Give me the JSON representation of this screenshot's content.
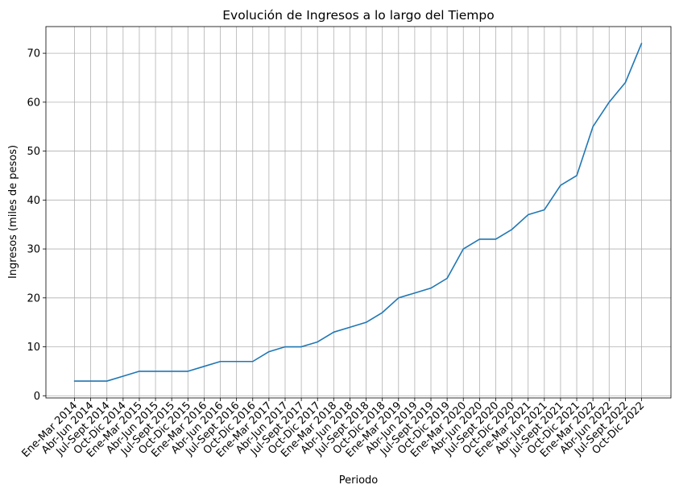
{
  "chart_data": {
    "type": "line",
    "title": "Evolución de Ingresos a lo largo del Tiempo",
    "xlabel": "Periodo",
    "ylabel": "Ingresos (miles de pesos)",
    "categories": [
      "Ene-Mar 2014",
      "Abr-Jun 2014",
      "Jul-Sept 2014",
      "Oct-Dic 2014",
      "Ene-Mar 2015",
      "Abr-Jun 2015",
      "Jul-Sept 2015",
      "Oct-Dic 2015",
      "Ene-Mar 2016",
      "Abr-Jun 2016",
      "Jul-Sept 2016",
      "Oct-Dic 2016",
      "Ene-Mar 2017",
      "Abr-Jun 2017",
      "Jul-Sept 2017",
      "Oct-Dic 2017",
      "Ene-Mar 2018",
      "Abr-Jun 2018",
      "Jul-Sept 2018",
      "Oct-Dic 2018",
      "Ene-Mar 2019",
      "Abr-Jun 2019",
      "Jul-Sept 2019",
      "Oct-Dic 2019",
      "Ene-Mar 2020",
      "Abr-Jun 2020",
      "Jul-Sept 2020",
      "Oct-Dic 2020",
      "Ene-Mar 2021",
      "Abr-Jun 2021",
      "Jul-Sept 2021",
      "Oct-Dic 2021",
      "Ene-Mar 2022",
      "Abr-Jun 2022",
      "Jul-Sept 2022",
      "Oct-Dic 2022"
    ],
    "values": [
      3,
      3,
      3,
      4,
      5,
      5,
      5,
      5,
      6,
      7,
      7,
      7,
      9,
      10,
      10,
      11,
      13,
      14,
      15,
      17,
      20,
      21,
      22,
      24,
      30,
      32,
      32,
      34,
      37,
      38,
      43,
      45,
      55,
      60,
      64,
      72
    ],
    "yticks": [
      0,
      10,
      20,
      30,
      40,
      50,
      60,
      70
    ],
    "ylim": [
      -0.45,
      75.45
    ],
    "grid": true,
    "colors": {
      "line": "#1f77b4",
      "grid": "#b0b0b0",
      "axis": "#000000"
    }
  }
}
